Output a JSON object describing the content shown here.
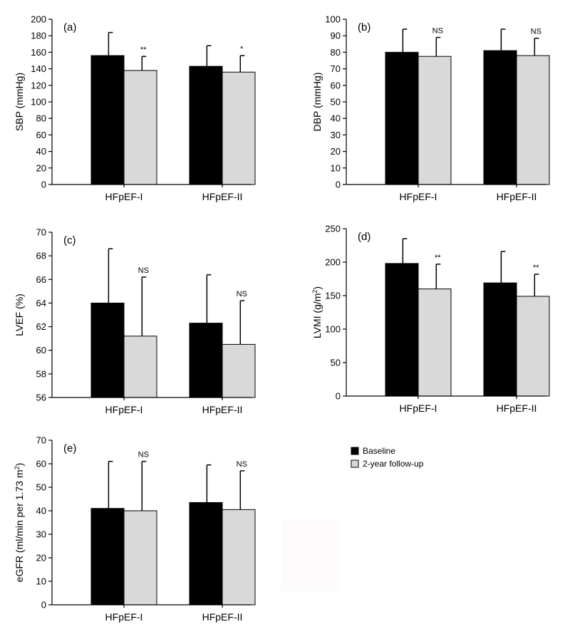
{
  "colors": {
    "baseline": "#000000",
    "followup": "#d9d9d9",
    "axis": "#000000"
  },
  "legend": {
    "placement": "right of panel (e)",
    "items": [
      {
        "label": "Baseline",
        "color": "#000000"
      },
      {
        "label": "2-year follow-up",
        "color": "#d9d9d9"
      }
    ]
  },
  "chart_data": [
    {
      "id": "a",
      "type": "bar",
      "panel_label": "(a)",
      "ylabel": "SBP (mmHg)",
      "ylim": [
        0,
        200
      ],
      "yticks": [
        0,
        20,
        40,
        60,
        80,
        100,
        120,
        140,
        160,
        180,
        200
      ],
      "categories": [
        "HFpEF-I",
        "HFpEF-II"
      ],
      "series": [
        {
          "name": "Baseline",
          "values": [
            156,
            143
          ],
          "errors": [
            28,
            25
          ]
        },
        {
          "name": "2-year follow-up",
          "values": [
            138,
            136
          ],
          "errors": [
            17,
            20
          ]
        }
      ],
      "annotations": [
        "**",
        "*"
      ]
    },
    {
      "id": "b",
      "type": "bar",
      "panel_label": "(b)",
      "ylabel": "DBP (mmHg)",
      "ylim": [
        0,
        100
      ],
      "yticks": [
        0,
        10,
        20,
        30,
        40,
        50,
        60,
        70,
        80,
        90,
        100
      ],
      "categories": [
        "HFpEF-I",
        "HFpEF-II"
      ],
      "series": [
        {
          "name": "Baseline",
          "values": [
            80,
            81
          ],
          "errors": [
            14,
            13
          ]
        },
        {
          "name": "2-year follow-up",
          "values": [
            77.5,
            78
          ],
          "errors": [
            11.5,
            10.5
          ]
        }
      ],
      "annotations": [
        "NS",
        "NS"
      ]
    },
    {
      "id": "c",
      "type": "bar",
      "panel_label": "(c)",
      "ylabel": "LVEF (%)",
      "ylim": [
        56,
        70
      ],
      "yticks": [
        56,
        58,
        60,
        62,
        64,
        66,
        68,
        70
      ],
      "categories": [
        "HFpEF-I",
        "HFpEF-II"
      ],
      "series": [
        {
          "name": "Baseline",
          "values": [
            64,
            62.3
          ],
          "errors": [
            4.6,
            4.1
          ]
        },
        {
          "name": "2-year follow-up",
          "values": [
            61.2,
            60.5
          ],
          "errors": [
            5,
            3.7
          ]
        }
      ],
      "annotations": [
        "NS",
        "NS"
      ]
    },
    {
      "id": "d",
      "type": "bar",
      "panel_label": "(d)",
      "ylabel": "LVMI (g/m2)",
      "ylim": [
        0,
        250
      ],
      "yticks": [
        0,
        50,
        100,
        150,
        200,
        250
      ],
      "categories": [
        "HFpEF-I",
        "HFpEF-II"
      ],
      "series": [
        {
          "name": "Baseline",
          "values": [
            198,
            169
          ],
          "errors": [
            37,
            47
          ]
        },
        {
          "name": "2-year follow-up",
          "values": [
            160,
            149
          ],
          "errors": [
            37,
            33
          ]
        }
      ],
      "annotations": [
        "**",
        "**"
      ]
    },
    {
      "id": "e",
      "type": "bar",
      "panel_label": "(e)",
      "ylabel": "eGFR (ml/min per 1.73 m2)",
      "ylim": [
        0,
        70
      ],
      "yticks": [
        0,
        10,
        20,
        30,
        40,
        50,
        60,
        70
      ],
      "categories": [
        "HFpEF-I",
        "HFpEF-II"
      ],
      "series": [
        {
          "name": "Baseline",
          "values": [
            41,
            43.5
          ],
          "errors": [
            20,
            16
          ]
        },
        {
          "name": "2-year follow-up",
          "values": [
            40,
            40.5
          ],
          "errors": [
            21,
            16.5
          ]
        }
      ],
      "annotations": [
        "NS",
        "NS"
      ]
    }
  ]
}
